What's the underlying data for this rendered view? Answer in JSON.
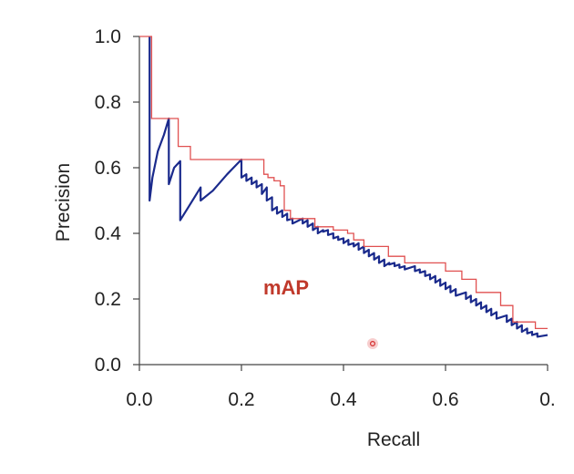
{
  "chart_data": {
    "type": "line",
    "xlabel": "Recall",
    "ylabel": "Precision",
    "xlim": [
      0,
      1
    ],
    "ylim": [
      0,
      1
    ],
    "x_tick_labels": [
      "0.0",
      "0.2",
      "0.4",
      "0.6",
      "0."
    ],
    "y_tick_labels": [
      "0.0",
      "0.2",
      "0.4",
      "0.6",
      "0.8",
      "1.0"
    ],
    "annotation": "mAP",
    "colors": {
      "precision_line": "#1a2a8c",
      "interpolated_line": "#e05050",
      "annotation": "#c0392b",
      "axis": "#444444"
    },
    "series": [
      {
        "style": "raw",
        "x": [
          0.025,
          0.025,
          0.025,
          0.032,
          0.045,
          0.06,
          0.072,
          0.072,
          0.085,
          0.1,
          0.1,
          0.12,
          0.15,
          0.15,
          0.18,
          0.215,
          0.25,
          0.25,
          0.262,
          0.262,
          0.275,
          0.275,
          0.287,
          0.287,
          0.3,
          0.3,
          0.312,
          0.312,
          0.325,
          0.325,
          0.337,
          0.337,
          0.35,
          0.35,
          0.362,
          0.362,
          0.375,
          0.375,
          0.4,
          0.4,
          0.412,
          0.412,
          0.425,
          0.425,
          0.437,
          0.437,
          0.45,
          0.45,
          0.462,
          0.462,
          0.475,
          0.475,
          0.487,
          0.487,
          0.5,
          0.5,
          0.512,
          0.512,
          0.525,
          0.525,
          0.537,
          0.537,
          0.55,
          0.55,
          0.562,
          0.562,
          0.575,
          0.575,
          0.587,
          0.587,
          0.6,
          0.6,
          0.612,
          0.612,
          0.625,
          0.625,
          0.637,
          0.637,
          0.65,
          0.65,
          0.675,
          0.675,
          0.687,
          0.687,
          0.7,
          0.7,
          0.712,
          0.712,
          0.725,
          0.725,
          0.737,
          0.737,
          0.75,
          0.75,
          0.762,
          0.762,
          0.775,
          0.775,
          0.8,
          0.8,
          0.812,
          0.812,
          0.825,
          0.825,
          0.837,
          0.837,
          0.85,
          0.85,
          0.862,
          0.862,
          0.875,
          0.875,
          0.9,
          0.9,
          0.912,
          0.912,
          0.925,
          0.925,
          0.937,
          0.937,
          0.95,
          0.95,
          0.962,
          0.962,
          0.975,
          0.975,
          1.0
        ],
        "y": [
          1.0,
          0.75,
          0.5,
          0.57,
          0.65,
          0.7,
          0.75,
          0.55,
          0.6,
          0.62,
          0.44,
          0.48,
          0.54,
          0.5,
          0.53,
          0.58,
          0.625,
          0.57,
          0.58,
          0.56,
          0.57,
          0.55,
          0.56,
          0.54,
          0.55,
          0.52,
          0.54,
          0.5,
          0.51,
          0.47,
          0.48,
          0.46,
          0.47,
          0.45,
          0.46,
          0.44,
          0.445,
          0.43,
          0.445,
          0.43,
          0.44,
          0.42,
          0.43,
          0.41,
          0.42,
          0.4,
          0.41,
          0.405,
          0.41,
          0.395,
          0.4,
          0.385,
          0.39,
          0.38,
          0.385,
          0.37,
          0.38,
          0.365,
          0.37,
          0.36,
          0.37,
          0.35,
          0.36,
          0.34,
          0.35,
          0.33,
          0.34,
          0.32,
          0.33,
          0.31,
          0.32,
          0.3,
          0.31,
          0.305,
          0.31,
          0.3,
          0.305,
          0.295,
          0.3,
          0.29,
          0.3,
          0.285,
          0.29,
          0.28,
          0.285,
          0.27,
          0.275,
          0.26,
          0.27,
          0.25,
          0.26,
          0.24,
          0.25,
          0.23,
          0.24,
          0.22,
          0.23,
          0.21,
          0.22,
          0.2,
          0.21,
          0.19,
          0.2,
          0.18,
          0.19,
          0.17,
          0.18,
          0.16,
          0.17,
          0.15,
          0.16,
          0.14,
          0.15,
          0.13,
          0.14,
          0.12,
          0.13,
          0.11,
          0.12,
          0.1,
          0.11,
          0.095,
          0.1,
          0.09,
          0.095,
          0.085,
          0.09
        ]
      },
      {
        "style": "interpolated",
        "x": [
          0,
          0.03,
          0.03,
          0.095,
          0.095,
          0.125,
          0.125,
          0.305,
          0.305,
          0.315,
          0.315,
          0.33,
          0.33,
          0.345,
          0.345,
          0.355,
          0.355,
          0.37,
          0.37,
          0.43,
          0.43,
          0.475,
          0.475,
          0.51,
          0.51,
          0.525,
          0.525,
          0.55,
          0.55,
          0.61,
          0.61,
          0.65,
          0.65,
          0.75,
          0.75,
          0.79,
          0.79,
          0.825,
          0.825,
          0.885,
          0.885,
          0.915,
          0.915,
          0.97,
          0.97,
          1.0
        ],
        "y": [
          1.0,
          1.0,
          0.75,
          0.75,
          0.665,
          0.665,
          0.625,
          0.625,
          0.58,
          0.58,
          0.57,
          0.57,
          0.56,
          0.56,
          0.545,
          0.545,
          0.47,
          0.47,
          0.445,
          0.445,
          0.42,
          0.42,
          0.41,
          0.41,
          0.4,
          0.4,
          0.38,
          0.38,
          0.36,
          0.36,
          0.33,
          0.33,
          0.31,
          0.31,
          0.285,
          0.285,
          0.26,
          0.26,
          0.22,
          0.22,
          0.18,
          0.18,
          0.13,
          0.13,
          0.11,
          0.11
        ]
      }
    ]
  }
}
